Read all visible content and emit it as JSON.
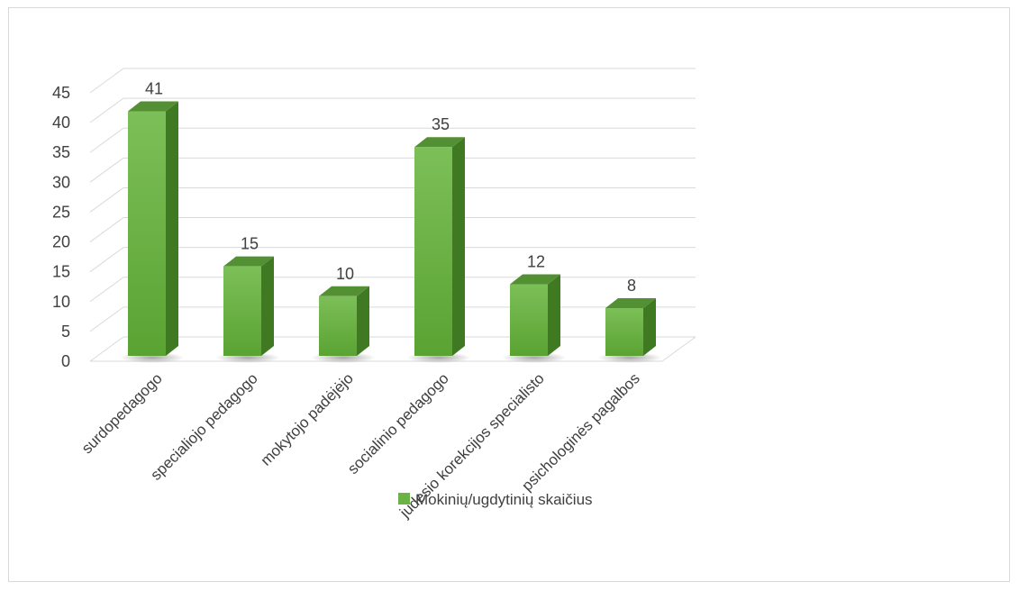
{
  "chart_data": {
    "type": "bar",
    "categories": [
      "surdopedagogo",
      "specialiojo pedagogo",
      "mokytojo padėjėjo",
      "socialinio pedagogo",
      "judesio korekcijos specialisto",
      "psichologinės pagalbos"
    ],
    "series": [
      {
        "name": "Mokinių/ugdytinių skaičius",
        "values": [
          41,
          15,
          10,
          35,
          12,
          8
        ]
      }
    ],
    "y_ticks": [
      "0",
      "5",
      "10",
      "15",
      "20",
      "25",
      "30",
      "35",
      "40",
      "45"
    ],
    "ylim": [
      0,
      45
    ],
    "grid": true,
    "legend_position": "bottom",
    "bar_style": "3d",
    "colors": {
      "bar_front": "#6ab344",
      "bar_side": "#3f7a23",
      "bar_top": "#538f33",
      "grid": "#d9d9d9",
      "text": "#404040"
    }
  }
}
